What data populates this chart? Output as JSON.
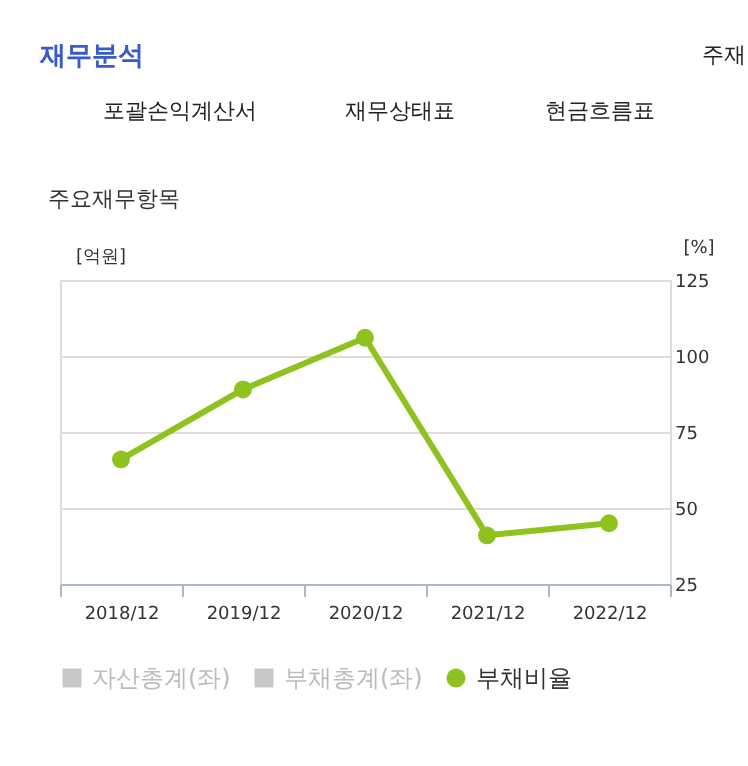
{
  "chart_data": {
    "type": "line",
    "title": "재무분석",
    "subtitle": "주요재무항목",
    "annotations": [
      "포괄손익계산서",
      "재무상태표",
      "현금흐름표",
      "주재"
    ],
    "ylabel": "[억원]",
    "y2label": "[%]",
    "categories": [
      "2018/12",
      "2019/12",
      "2020/12",
      "2021/12",
      "2022/12"
    ],
    "series": [
      {
        "name": "자산총계(좌)",
        "type": "bar",
        "color": "#c8c8c8",
        "values": [
          null,
          null,
          null,
          null,
          null
        ]
      },
      {
        "name": "부채총계(좌)",
        "type": "bar",
        "color": "#c8c8c8",
        "values": [
          null,
          null,
          null,
          null,
          null
        ]
      },
      {
        "name": "부채비율",
        "axis": "y2",
        "color": "#8dc21f",
        "values": [
          66,
          89,
          106,
          41,
          45
        ]
      }
    ],
    "y2lim": [
      25,
      125
    ],
    "y2ticks": [
      25,
      50,
      75,
      100,
      125
    ],
    "grid": "y",
    "legend": "bottom",
    "marker": "circle"
  }
}
